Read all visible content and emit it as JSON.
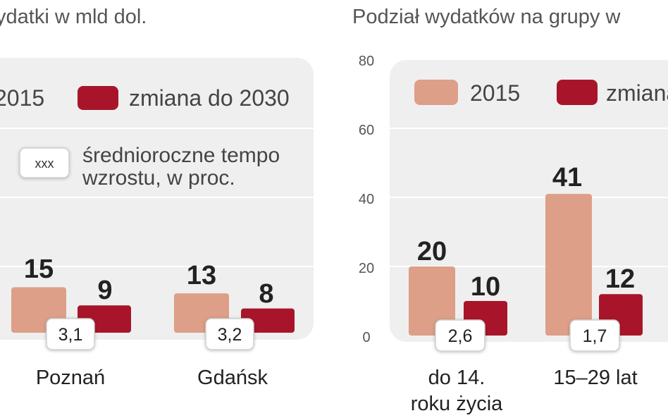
{
  "colors": {
    "c2015": "#dd9f87",
    "change": "#a8152a",
    "panel": "#efefef",
    "grid": "#ffffff"
  },
  "chart_data": [
    {
      "type": "bar",
      "title": "ydatki w mld dol.",
      "legend": [
        "2015",
        "zmiana do 2030"
      ],
      "note_box": "xxx",
      "note_line1": "średnioroczne tempo",
      "note_line2": "wzrostu, w proc.",
      "categories": [
        "Poznań",
        "Gdańsk"
      ],
      "series": [
        {
          "name": "2015",
          "values": [
            15,
            13
          ]
        },
        {
          "name": "zmiana do 2030",
          "values": [
            9,
            8
          ]
        }
      ],
      "growth_rates": [
        "3,1",
        "3,2"
      ]
    },
    {
      "type": "bar",
      "title": "Podział wydatków na grupy w",
      "legend": [
        "2015",
        "zmiana"
      ],
      "yticks": [
        "0",
        "20",
        "40",
        "60",
        "80"
      ],
      "ylim": [
        0,
        80
      ],
      "categories": [
        [
          "do 14.",
          "roku życia"
        ],
        [
          "15–29 lat"
        ]
      ],
      "series": [
        {
          "name": "2015",
          "values": [
            20,
            41
          ]
        },
        {
          "name": "zmiana",
          "values": [
            10,
            12
          ]
        }
      ],
      "growth_rates": [
        "2,6",
        "1,7"
      ]
    }
  ]
}
